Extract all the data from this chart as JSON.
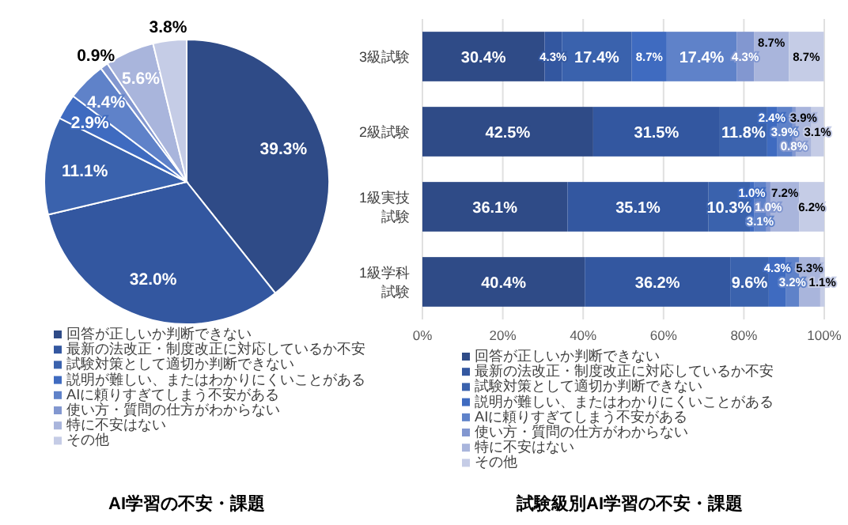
{
  "chart_data": [
    {
      "type": "pie",
      "title": "AI学習の不安・課題",
      "legend": "bottom",
      "categories": [
        "回答が正しいか判断できない",
        "最新の法改正・制度改正に対応しているか不安",
        "試験対策として適切か判断できない",
        "説明が難しい、またはわかりにくいことがある",
        "AIに頼りすぎてしまう不安がある",
        "使い方・質問の仕方がわからない",
        "特に不安はない",
        "その他"
      ],
      "values": [
        39.3,
        32.0,
        11.1,
        2.9,
        4.4,
        0.9,
        5.6,
        3.8
      ],
      "value_labels": [
        "39.3%",
        "32.0%",
        "11.1%",
        "2.9%",
        "4.4%",
        "0.9%",
        "5.6%",
        "3.8%"
      ],
      "colors": [
        "#2f4b87",
        "#3357a0",
        "#3a62ad",
        "#3f6bc0",
        "#5f82c9",
        "#8297d0",
        "#a9b5dc",
        "#c5cce6"
      ]
    },
    {
      "type": "bar",
      "orientation": "horizontal",
      "stacked": true,
      "title": "試験級別AI学習の不安・課題",
      "legend": "bottom",
      "grid": "x",
      "categories": [
        "3級試験",
        "2級試験",
        "1級実技試験",
        "1級学科試験"
      ],
      "xlim": [
        0,
        100
      ],
      "xticks": [
        {
          "value": 0,
          "label": "0%"
        },
        {
          "value": 20,
          "label": "20%"
        },
        {
          "value": 40,
          "label": "40%"
        },
        {
          "value": 60,
          "label": "60%"
        },
        {
          "value": 80,
          "label": "80%"
        },
        {
          "value": 100,
          "label": "100%"
        }
      ],
      "series": [
        {
          "name": "回答が正しいか判断できない",
          "color": "#2f4b87",
          "values": [
            30.4,
            42.5,
            36.1,
            40.4
          ],
          "value_labels": [
            "30.4%",
            "42.5%",
            "36.1%",
            "40.4%"
          ]
        },
        {
          "name": "最新の法改正・制度改正に対応しているか不安",
          "color": "#3357a0",
          "values": [
            4.3,
            31.5,
            35.1,
            36.2
          ],
          "value_labels": [
            "4.3%",
            "31.5%",
            "35.1%",
            "36.2%"
          ]
        },
        {
          "name": "試験対策として適切か判断できない",
          "color": "#3a62ad",
          "values": [
            17.4,
            11.8,
            10.3,
            9.6
          ],
          "value_labels": [
            "17.4%",
            "11.8%",
            "10.3%",
            "9.6%"
          ]
        },
        {
          "name": "説明が難しい、またはわかりにくいことがある",
          "color": "#3f6bc0",
          "values": [
            8.7,
            2.4,
            1.0,
            4.3
          ],
          "value_labels": [
            "8.7%",
            "2.4%",
            "1.0%",
            "4.3%"
          ]
        },
        {
          "name": "AIに頼りすぎてしまう不安がある",
          "color": "#5f82c9",
          "values": [
            17.4,
            3.9,
            3.1,
            3.2
          ],
          "value_labels": [
            "17.4%",
            "3.9%",
            "3.1%",
            "3.2%"
          ]
        },
        {
          "name": "使い方・質問の仕方がわからない",
          "color": "#8297d0",
          "values": [
            4.3,
            0.8,
            1.0,
            null
          ],
          "value_labels": [
            "4.3%",
            "0.8%",
            "1.0%",
            null
          ]
        },
        {
          "name": "特に不安はない",
          "color": "#a9b5dc",
          "values": [
            8.7,
            3.9,
            7.2,
            5.3
          ],
          "value_labels": [
            "8.7%",
            "3.9%",
            "7.2%",
            "5.3%"
          ]
        },
        {
          "name": "その他",
          "color": "#c5cce6",
          "values": [
            8.7,
            3.1,
            6.2,
            1.1
          ],
          "value_labels": [
            "8.7%",
            "3.1%",
            "6.2%",
            "1.1%"
          ]
        }
      ]
    }
  ]
}
